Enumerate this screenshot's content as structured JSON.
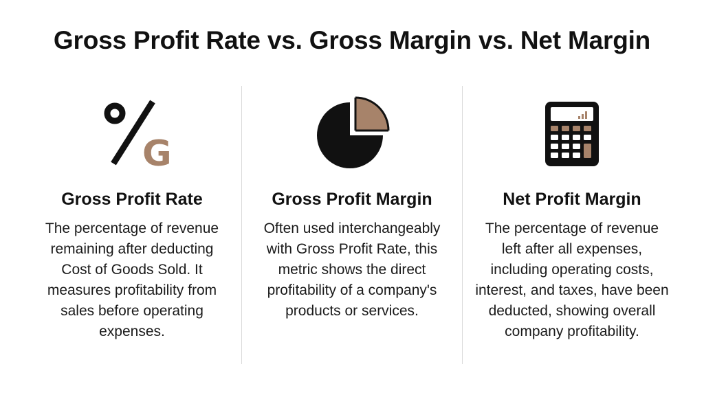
{
  "title": "Gross Profit Rate vs. Gross Margin vs. Net Margin",
  "colors": {
    "accent": "#a7836a",
    "ink": "#111111",
    "divider": "#d9d9d9"
  },
  "columns": [
    {
      "icon": "percent-g-icon",
      "heading": "Gross Profit Rate",
      "description": "The percentage of revenue remaining after deducting Cost of Goods Sold. It measures profitability from sales before operating expenses."
    },
    {
      "icon": "pie-chart-icon",
      "heading": "Gross Profit Margin",
      "description": "Often used interchangeably with Gross Profit Rate, this metric shows the direct profitability of a company's products or services."
    },
    {
      "icon": "calculator-icon",
      "heading": "Net Profit Margin",
      "description": "The percentage of revenue left after all expenses, including operating costs, interest, and taxes, have been deducted, showing overall company profitability."
    }
  ]
}
